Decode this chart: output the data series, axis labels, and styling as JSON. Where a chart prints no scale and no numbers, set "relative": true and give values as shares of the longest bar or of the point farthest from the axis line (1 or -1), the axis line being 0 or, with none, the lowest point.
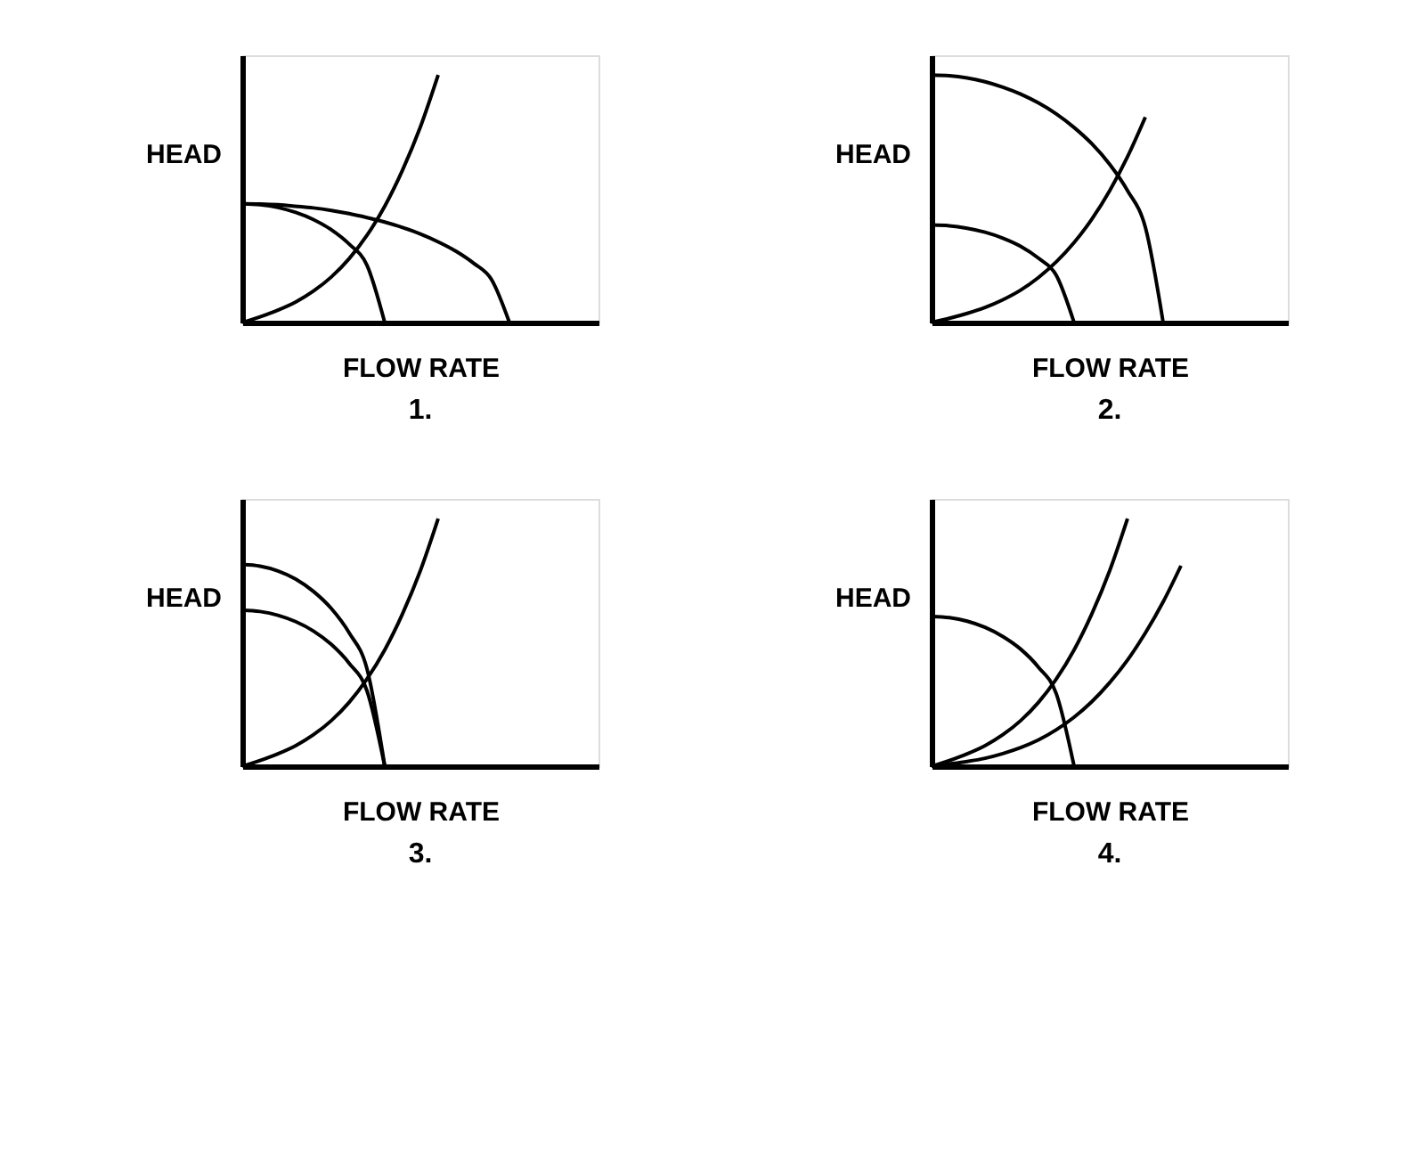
{
  "chart_data": [
    {
      "type": "line",
      "relative": true,
      "xlabel": "FLOW RATE",
      "ylabel": "HEAD",
      "annotations": [
        "1."
      ],
      "grid": false,
      "legend": false,
      "tick_labels": false,
      "categories": [
        null,
        null,
        null,
        null,
        null,
        null,
        null,
        null,
        null,
        null,
        null,
        null,
        null,
        null,
        null,
        null,
        null,
        null,
        null,
        null,
        null
      ],
      "series": [
        {
          "color": "#000000",
          "values": [
            0.48,
            0.476,
            0.465,
            0.445,
            0.416,
            0.375,
            0.317,
            0.232,
            0,
            null,
            null,
            null,
            null,
            null,
            null,
            null,
            null,
            null,
            null,
            null,
            null
          ]
        },
        {
          "color": "#000000",
          "values": [
            0.48,
            0.479,
            0.476,
            0.47,
            0.463,
            0.453,
            0.44,
            0.424,
            0.406,
            0.384,
            0.358,
            0.326,
            0.288,
            0.239,
            0.173,
            0,
            null,
            null,
            null,
            null,
            null
          ]
        },
        {
          "color": "#000000",
          "values": [
            0,
            0.023,
            0.05,
            0.083,
            0.127,
            0.184,
            0.258,
            0.352,
            0.47,
            0.616,
            0.79,
            1,
            null,
            null,
            null,
            null,
            null,
            null,
            null,
            null,
            null
          ]
        }
      ]
    },
    {
      "type": "line",
      "relative": true,
      "xlabel": "FLOW RATE",
      "ylabel": "HEAD",
      "annotations": [
        "2."
      ],
      "grid": false,
      "legend": false,
      "tick_labels": false,
      "categories": [
        null,
        null,
        null,
        null,
        null,
        null,
        null,
        null,
        null,
        null,
        null,
        null,
        null,
        null,
        null,
        null,
        null,
        null,
        null,
        null,
        null
      ],
      "series": [
        {
          "color": "#000000",
          "values": [
            0.394,
            0.391,
            0.381,
            0.365,
            0.341,
            0.308,
            0.26,
            0.191,
            0,
            null,
            null,
            null,
            null,
            null,
            null,
            null,
            null,
            null,
            null,
            null,
            null
          ]
        },
        {
          "color": "#000000",
          "values": [
            1,
            0.997,
            0.988,
            0.973,
            0.951,
            0.923,
            0.887,
            0.843,
            0.788,
            0.722,
            0.639,
            0.533,
            0.385,
            0,
            null,
            null,
            null,
            null,
            null,
            null,
            null
          ]
        },
        {
          "color": "#000000",
          "values": [
            0,
            0.017,
            0.037,
            0.061,
            0.092,
            0.131,
            0.182,
            0.245,
            0.323,
            0.418,
            0.533,
            0.67,
            0.83,
            null,
            null,
            null,
            null,
            null,
            null,
            null,
            null
          ]
        }
      ]
    },
    {
      "type": "line",
      "relative": true,
      "xlabel": "FLOW RATE",
      "ylabel": "HEAD",
      "annotations": [
        "3."
      ],
      "grid": false,
      "legend": false,
      "tick_labels": false,
      "categories": [
        null,
        null,
        null,
        null,
        null,
        null,
        null,
        null,
        null,
        null,
        null,
        null,
        null,
        null,
        null,
        null,
        null,
        null,
        null,
        null,
        null
      ],
      "series": [
        {
          "color": "#000000",
          "values": [
            0.815,
            0.808,
            0.789,
            0.756,
            0.706,
            0.637,
            0.539,
            0.394,
            0,
            null,
            null,
            null,
            null,
            null,
            null,
            null,
            null,
            null,
            null,
            null,
            null
          ]
        },
        {
          "color": "#000000",
          "values": [
            0.63,
            0.625,
            0.61,
            0.584,
            0.546,
            0.492,
            0.416,
            0.305,
            0,
            null,
            null,
            null,
            null,
            null,
            null,
            null,
            null,
            null,
            null,
            null,
            null
          ]
        },
        {
          "color": "#000000",
          "values": [
            0,
            0.023,
            0.05,
            0.083,
            0.127,
            0.184,
            0.258,
            0.352,
            0.47,
            0.616,
            0.79,
            1,
            null,
            null,
            null,
            null,
            null,
            null,
            null,
            null,
            null
          ]
        }
      ]
    },
    {
      "type": "line",
      "relative": true,
      "xlabel": "FLOW RATE",
      "ylabel": "HEAD",
      "annotations": [
        "4."
      ],
      "grid": false,
      "legend": false,
      "tick_labels": false,
      "categories": [
        null,
        null,
        null,
        null,
        null,
        null,
        null,
        null,
        null,
        null,
        null,
        null,
        null,
        null,
        null,
        null,
        null,
        null,
        null,
        null,
        null
      ],
      "series": [
        {
          "color": "#000000",
          "values": [
            0.605,
            0.6,
            0.586,
            0.561,
            0.524,
            0.473,
            0.4,
            0.293,
            0,
            null,
            null,
            null,
            null,
            null,
            null,
            null,
            null,
            null,
            null,
            null,
            null
          ]
        },
        {
          "color": "#000000",
          "values": [
            0,
            0.023,
            0.05,
            0.083,
            0.127,
            0.184,
            0.258,
            0.352,
            0.47,
            0.616,
            0.79,
            1,
            null,
            null,
            null,
            null,
            null,
            null,
            null,
            null,
            null
          ]
        },
        {
          "color": "#000000",
          "values": [
            0,
            0.009,
            0.019,
            0.032,
            0.051,
            0.075,
            0.106,
            0.147,
            0.198,
            0.261,
            0.338,
            0.429,
            0.538,
            0.664,
            0.81,
            null,
            null,
            null,
            null,
            null,
            null
          ]
        }
      ]
    }
  ]
}
